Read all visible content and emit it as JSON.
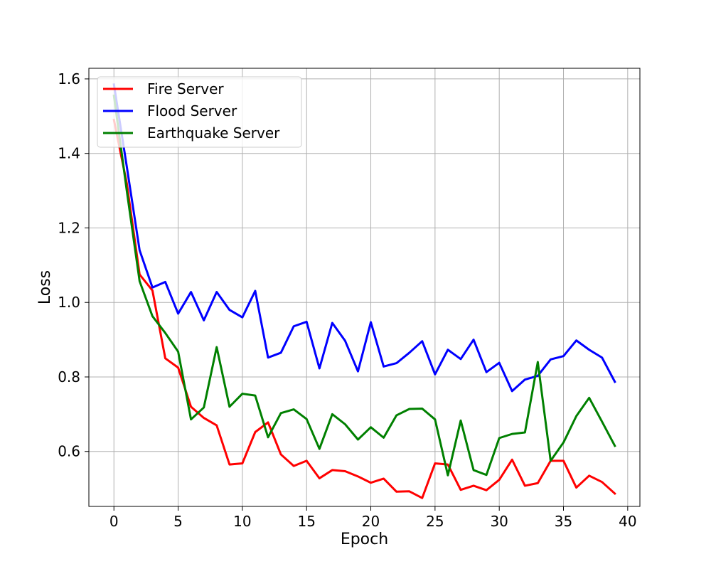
{
  "chart_data": {
    "type": "line",
    "title": "",
    "xlabel": "Epoch",
    "ylabel": "Loss",
    "xlim": [
      -1.95,
      40.95
    ],
    "ylim": [
      0.4525,
      1.6285
    ],
    "xticks": [
      0,
      5,
      10,
      15,
      20,
      25,
      30,
      35,
      40
    ],
    "yticks": [
      0.6,
      0.8,
      1.0,
      1.2,
      1.4,
      1.6
    ],
    "ytick_labels": [
      "0.6",
      "0.8",
      "1.0",
      "1.2",
      "1.4",
      "1.6"
    ],
    "grid": true,
    "legend_position": "top-left",
    "x": [
      0,
      1,
      2,
      3,
      4,
      5,
      6,
      7,
      8,
      9,
      10,
      11,
      12,
      13,
      14,
      15,
      16,
      17,
      18,
      19,
      20,
      21,
      22,
      23,
      24,
      25,
      26,
      27,
      28,
      29,
      30,
      31,
      32,
      33,
      34,
      35,
      36,
      37,
      38,
      39
    ],
    "series": [
      {
        "name": "Fire Server",
        "color": "#ff0000",
        "values": [
          1.49,
          1.32,
          1.075,
          1.032,
          0.85,
          0.825,
          0.72,
          0.69,
          0.67,
          0.565,
          0.568,
          0.652,
          0.678,
          0.592,
          0.561,
          0.575,
          0.528,
          0.55,
          0.547,
          0.533,
          0.516,
          0.527,
          0.492,
          0.493,
          0.475,
          0.568,
          0.565,
          0.497,
          0.508,
          0.496,
          0.524,
          0.578,
          0.508,
          0.515,
          0.575,
          0.575,
          0.503,
          0.535,
          0.518,
          0.487
        ]
      },
      {
        "name": "Flood Server",
        "color": "#0000ff",
        "values": [
          1.585,
          1.365,
          1.14,
          1.04,
          1.055,
          0.97,
          1.028,
          0.952,
          1.028,
          0.98,
          0.96,
          1.031,
          0.852,
          0.865,
          0.936,
          0.948,
          0.823,
          0.945,
          0.897,
          0.815,
          0.947,
          0.828,
          0.837,
          0.865,
          0.896,
          0.807,
          0.873,
          0.848,
          0.9,
          0.813,
          0.838,
          0.762,
          0.793,
          0.803,
          0.847,
          0.856,
          0.898,
          0.873,
          0.852,
          0.787
        ]
      },
      {
        "name": "Earthquake Server",
        "color": "#008000",
        "values": [
          1.555,
          1.3,
          1.057,
          0.963,
          0.918,
          0.868,
          0.686,
          0.718,
          0.88,
          0.72,
          0.755,
          0.75,
          0.638,
          0.703,
          0.713,
          0.687,
          0.607,
          0.7,
          0.673,
          0.632,
          0.665,
          0.637,
          0.697,
          0.714,
          0.715,
          0.686,
          0.536,
          0.683,
          0.55,
          0.537,
          0.636,
          0.647,
          0.651,
          0.84,
          0.575,
          0.624,
          0.695,
          0.744,
          0.68,
          0.615
        ]
      }
    ]
  }
}
